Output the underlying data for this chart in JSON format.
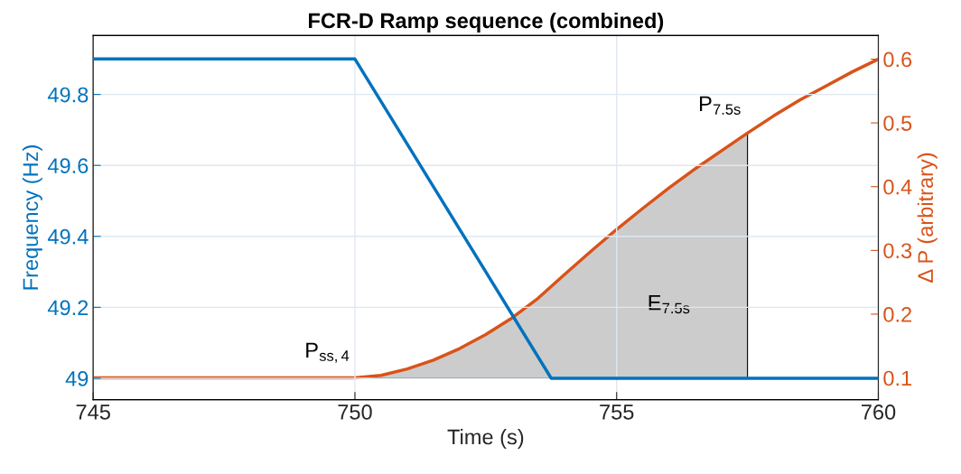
{
  "chart_data": {
    "type": "line",
    "title": "FCR-D Ramp sequence (combined)",
    "xlabel": "Time (s)",
    "ylabel": "Frequency (Hz)",
    "y2label": "Δ P (arbitrary)",
    "xlim": [
      745,
      760
    ],
    "xticks": [
      745,
      750,
      755,
      760
    ],
    "ylim": [
      48.94,
      49.966
    ],
    "yticks": [
      49,
      49.2,
      49.4,
      49.6,
      49.8
    ],
    "y2lim": [
      0.066,
      0.637
    ],
    "y2ticks": [
      0.1,
      0.2,
      0.3,
      0.4,
      0.5,
      0.6
    ],
    "grid": true,
    "series": [
      {
        "type": "area",
        "axis": "y2",
        "color": "#cccccc",
        "x": [
          750,
          750.5,
          751,
          751.5,
          752,
          752.5,
          753,
          753.5,
          754,
          754.5,
          755,
          755.5,
          756,
          756.5,
          757,
          757.5
        ],
        "values": [
          0.1,
          0.104,
          0.114,
          0.128,
          0.146,
          0.168,
          0.194,
          0.225,
          0.262,
          0.298,
          0.333,
          0.366,
          0.398,
          0.428,
          0.456,
          0.484
        ]
      },
      {
        "axis": "y",
        "color": "#0072bd",
        "x": [
          745,
          750,
          753.75,
          760
        ],
        "values": [
          49.9,
          49.9,
          49.0,
          49.0
        ]
      },
      {
        "axis": "y2",
        "color": "#d95319",
        "x": [
          745,
          750,
          750.5,
          751,
          751.5,
          752,
          752.5,
          753,
          753.5,
          754,
          754.5,
          755,
          755.5,
          756,
          756.5,
          757,
          757.5,
          758,
          758.5,
          759,
          759.5,
          760
        ],
        "values": [
          0.1,
          0.1,
          0.104,
          0.114,
          0.128,
          0.146,
          0.168,
          0.194,
          0.225,
          0.262,
          0.298,
          0.333,
          0.366,
          0.398,
          0.428,
          0.456,
          0.484,
          0.511,
          0.536,
          0.558,
          0.58,
          0.6
        ]
      }
    ],
    "annotations": [
      "P$_{ss,4}$",
      "E$_{7.5s}$",
      "P$_{7.5s}$"
    ]
  }
}
